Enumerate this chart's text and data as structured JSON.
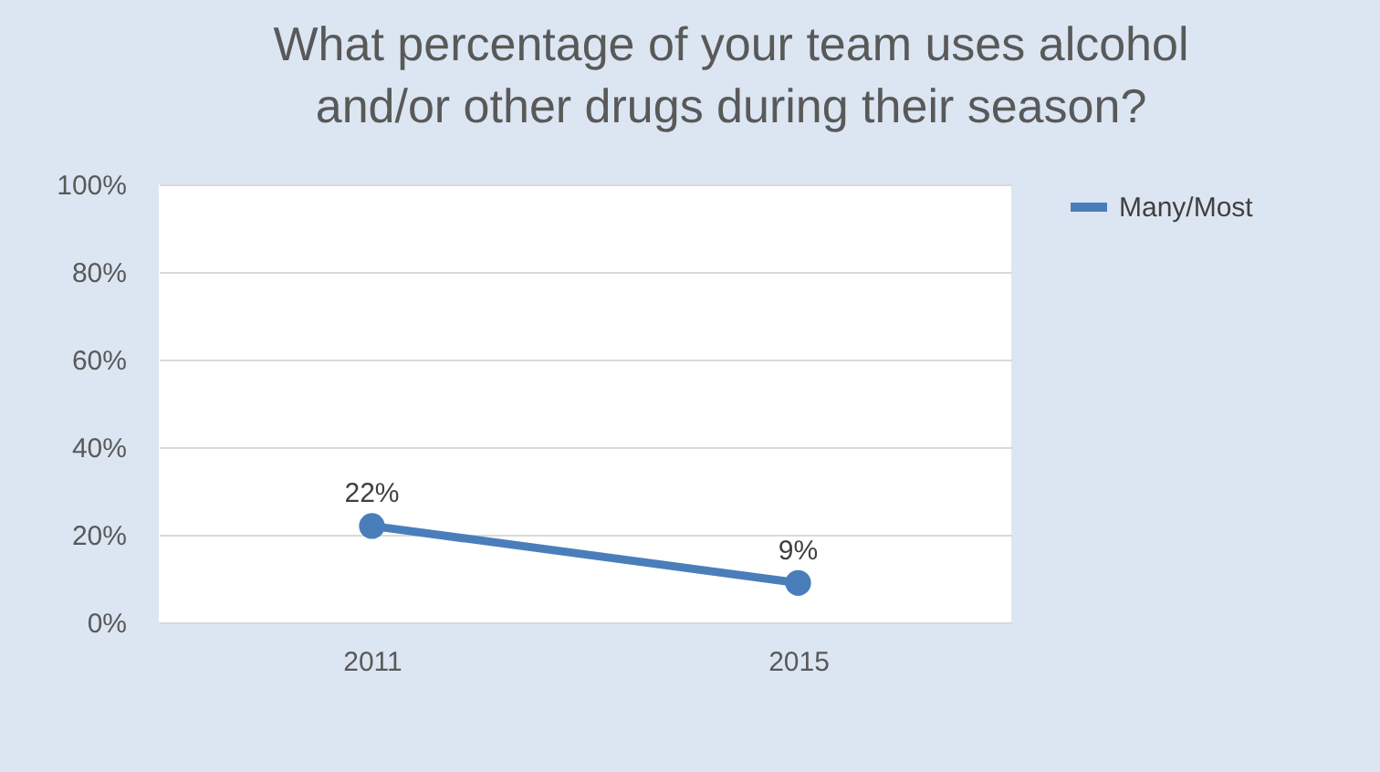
{
  "chart_data": {
    "type": "line",
    "title": "What percentage of your team uses alcohol and/or other drugs during their season?",
    "categories": [
      "2011",
      "2015"
    ],
    "series": [
      {
        "name": "Many/Most",
        "color": "#4a7ebb",
        "values": [
          22,
          9
        ],
        "value_labels": [
          "22%",
          "9%"
        ]
      }
    ],
    "ylim": [
      0,
      100
    ],
    "yticks": [
      {
        "value": 0,
        "label": "0%"
      },
      {
        "value": 20,
        "label": "20%"
      },
      {
        "value": 40,
        "label": "40%"
      },
      {
        "value": 60,
        "label": "60%"
      },
      {
        "value": 80,
        "label": "80%"
      },
      {
        "value": 100,
        "label": "100%"
      }
    ],
    "grid": "y",
    "legend": "right",
    "marker": "circle"
  }
}
